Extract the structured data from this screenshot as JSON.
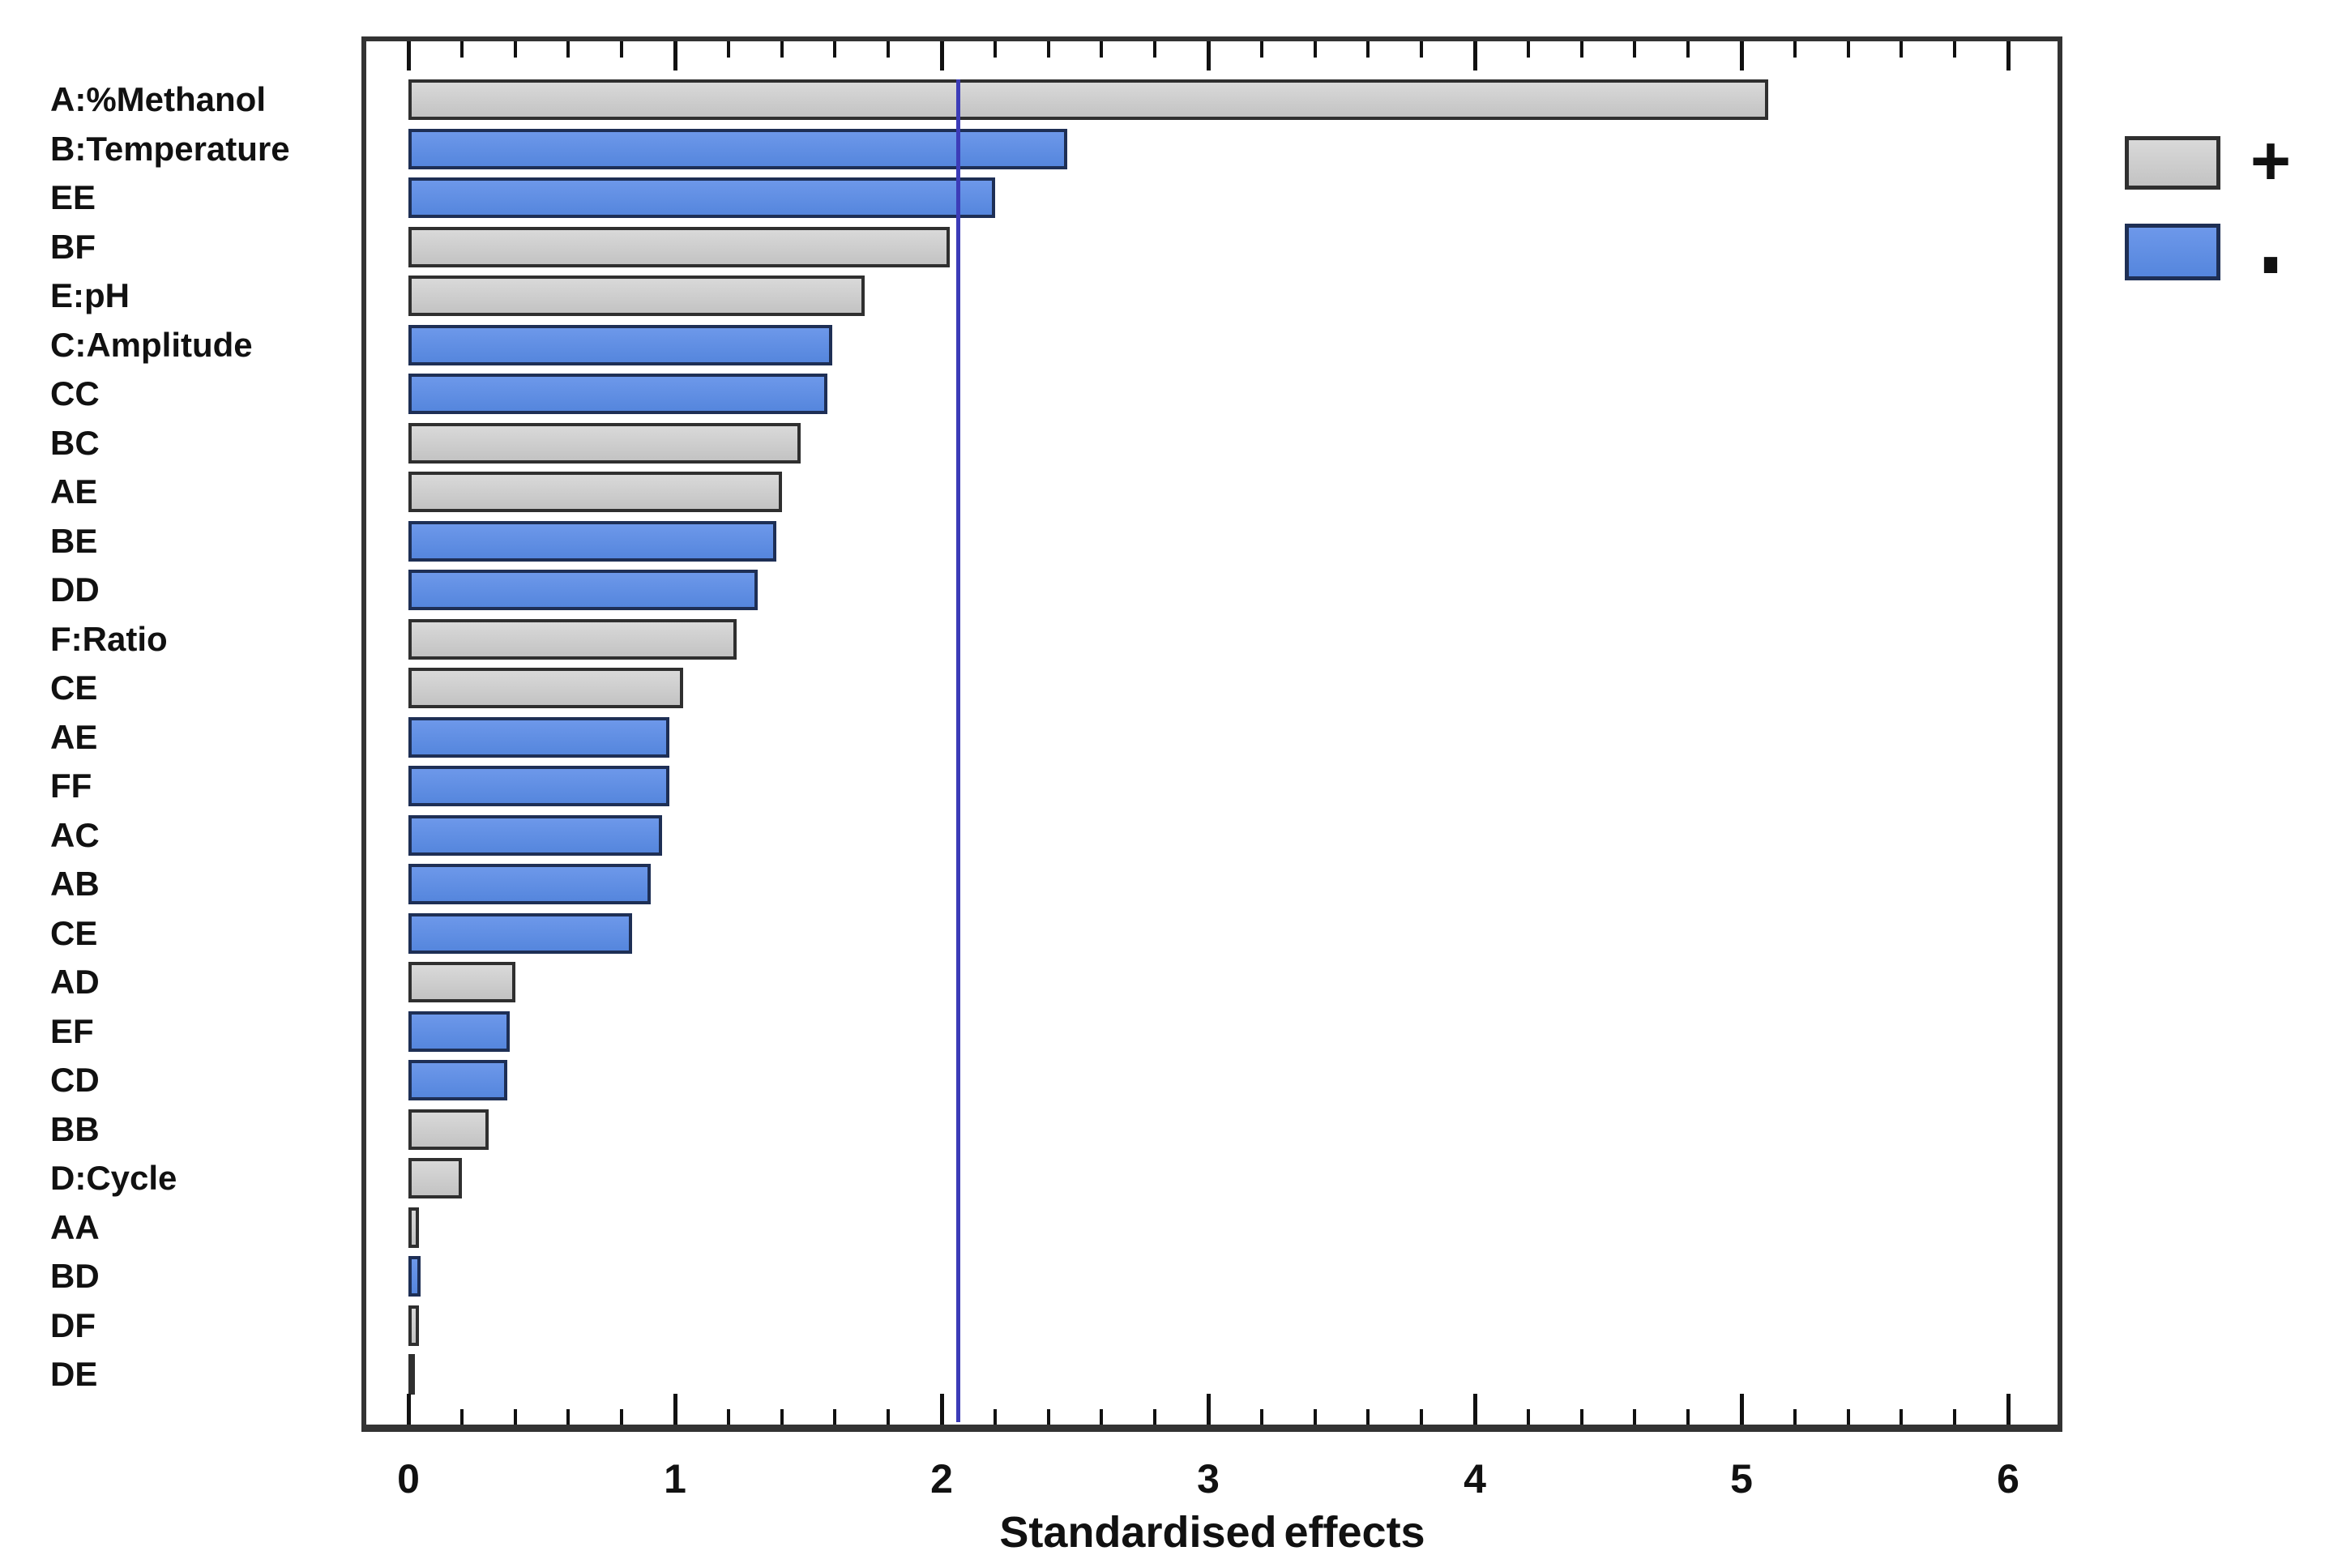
{
  "chart_data": {
    "type": "bar",
    "orientation": "horizontal",
    "title": "",
    "xlabel": "Standardised effects",
    "ylabel": "",
    "x_ticks": [
      "0",
      "1",
      "2",
      "3",
      "4",
      "5",
      "6"
    ],
    "x_minor_tick_step": 0.2,
    "xlim": [
      -0.18,
      6.2
    ],
    "grid": "off",
    "legend_position": "top-right",
    "legend": {
      "entries": [
        {
          "label": "+",
          "color": "#c9c9c9"
        },
        {
          "label": "-",
          "color": "#5f8ee0"
        }
      ]
    },
    "reference_line": {
      "value": 2.06,
      "color": "#3c3cb8"
    },
    "bars": [
      {
        "label": "A:%Methanol",
        "value": 5.1,
        "sign": "+"
      },
      {
        "label": "B:Temperature",
        "value": 2.47,
        "sign": "-"
      },
      {
        "label": "EE",
        "value": 2.2,
        "sign": "-"
      },
      {
        "label": "BF",
        "value": 2.03,
        "sign": "+"
      },
      {
        "label": "E:pH",
        "value": 1.71,
        "sign": "+"
      },
      {
        "label": "C:Amplitude",
        "value": 1.59,
        "sign": "-"
      },
      {
        "label": "CC",
        "value": 1.57,
        "sign": "-"
      },
      {
        "label": "BC",
        "value": 1.47,
        "sign": "+"
      },
      {
        "label": "AE",
        "value": 1.4,
        "sign": "+"
      },
      {
        "label": "BE",
        "value": 1.38,
        "sign": "-"
      },
      {
        "label": "DD",
        "value": 1.31,
        "sign": "-"
      },
      {
        "label": "F:Ratio",
        "value": 1.23,
        "sign": "+"
      },
      {
        "label": "CE",
        "value": 1.03,
        "sign": "+"
      },
      {
        "label": "AE",
        "value": 0.98,
        "sign": "-"
      },
      {
        "label": "FF",
        "value": 0.98,
        "sign": "-"
      },
      {
        "label": "AC",
        "value": 0.95,
        "sign": "-"
      },
      {
        "label": "AB",
        "value": 0.91,
        "sign": "-"
      },
      {
        "label": "CE",
        "value": 0.84,
        "sign": "-"
      },
      {
        "label": "AD",
        "value": 0.4,
        "sign": "+"
      },
      {
        "label": "EF",
        "value": 0.38,
        "sign": "-"
      },
      {
        "label": "CD",
        "value": 0.37,
        "sign": "-"
      },
      {
        "label": "BB",
        "value": 0.3,
        "sign": "+"
      },
      {
        "label": "D:Cycle",
        "value": 0.2,
        "sign": "+"
      },
      {
        "label": "AA",
        "value": 0.04,
        "sign": "+"
      },
      {
        "label": "BD",
        "value": 0.045,
        "sign": "-"
      },
      {
        "label": "DF",
        "value": 0.04,
        "sign": "+"
      },
      {
        "label": "DE",
        "value": 0.012,
        "sign": "+"
      }
    ]
  },
  "colors": {
    "positive_fill": "#c9c9c9",
    "negative_fill": "#5f8ee0",
    "bar_border_positive": "#2f2f2f",
    "bar_border_negative": "#1e2f55",
    "frame": "#333333",
    "reference_line": "#3c3cb8",
    "text": "#111111",
    "background": "#ffffff"
  }
}
